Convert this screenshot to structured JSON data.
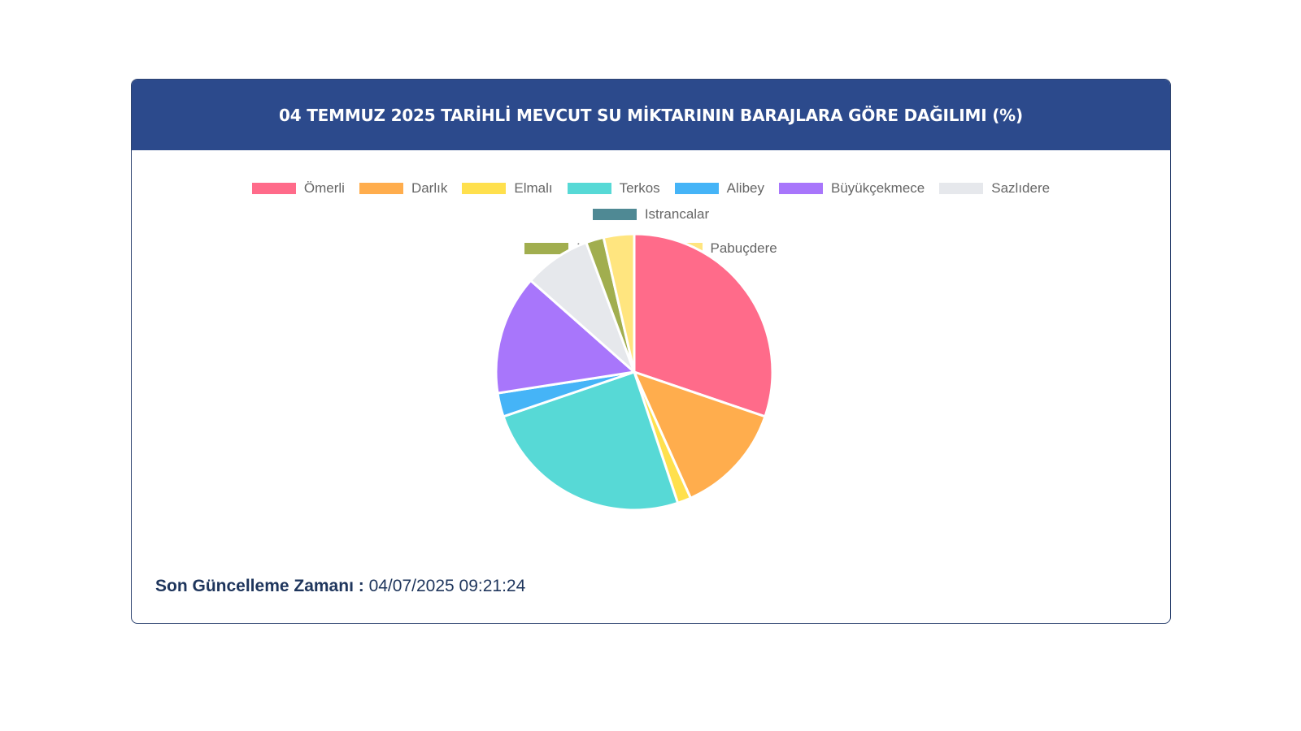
{
  "header": {
    "title": "04 TEMMUZ 2025 TARİHLİ MEVCUT SU MİKTARININ BARAJLARA GÖRE DAĞILIMI (%)"
  },
  "chart_data": {
    "type": "pie",
    "title": "04 TEMMUZ 2025 TARİHLİ MEVCUT SU MİKTARININ BARAJLARA GÖRE DAĞILIMI (%)",
    "legend_position": "top",
    "categories": [
      "Ömerli",
      "Darlık",
      "Elmalı",
      "Terkos",
      "Alibey",
      "Büyükçekmece",
      "Sazlıdere",
      "Istrancalar",
      "Kazandere",
      "Pabuçdere"
    ],
    "values": [
      30.5,
      13.2,
      1.6,
      25.1,
      2.8,
      14.1,
      7.9,
      0.0,
      2.1,
      3.6
    ],
    "colors": [
      "#ff6b8a",
      "#ffad4d",
      "#ffe04d",
      "#57d9d6",
      "#45b4f7",
      "#a876fb",
      "#e6e8ec",
      "#4f8994",
      "#a1ae4f",
      "#ffe57f"
    ]
  },
  "footer": {
    "label": "Son Güncelleme Zamanı :",
    "value": "04/07/2025 09:21:24"
  }
}
